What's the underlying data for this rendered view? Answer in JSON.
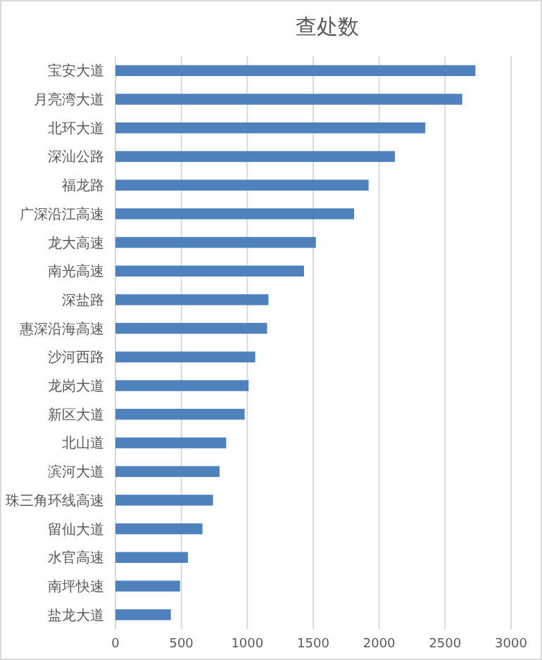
{
  "chart_data": {
    "type": "bar",
    "orientation": "horizontal",
    "title": "查处数",
    "categories": [
      "宝安大道",
      "月亮湾大道",
      "北环大道",
      "深汕公路",
      "福龙路",
      "广深沿江高速",
      "龙大高速",
      "南光高速",
      "深盐路",
      "惠深沿海高速",
      "沙河西路",
      "龙岗大道",
      "新区大道",
      "北山道",
      "滨河大道",
      "珠三角环线高速",
      "留仙大道",
      "水官高速",
      "南坪快速",
      "盐龙大道"
    ],
    "values": [
      2730,
      2630,
      2350,
      2120,
      1920,
      1810,
      1520,
      1430,
      1160,
      1150,
      1060,
      1010,
      980,
      840,
      790,
      740,
      660,
      550,
      490,
      420
    ],
    "color": "#4f81bd",
    "xlim": [
      0,
      3000
    ],
    "xticks": [
      0,
      500,
      1000,
      1500,
      2000,
      2500,
      3000
    ],
    "grid": "x"
  }
}
